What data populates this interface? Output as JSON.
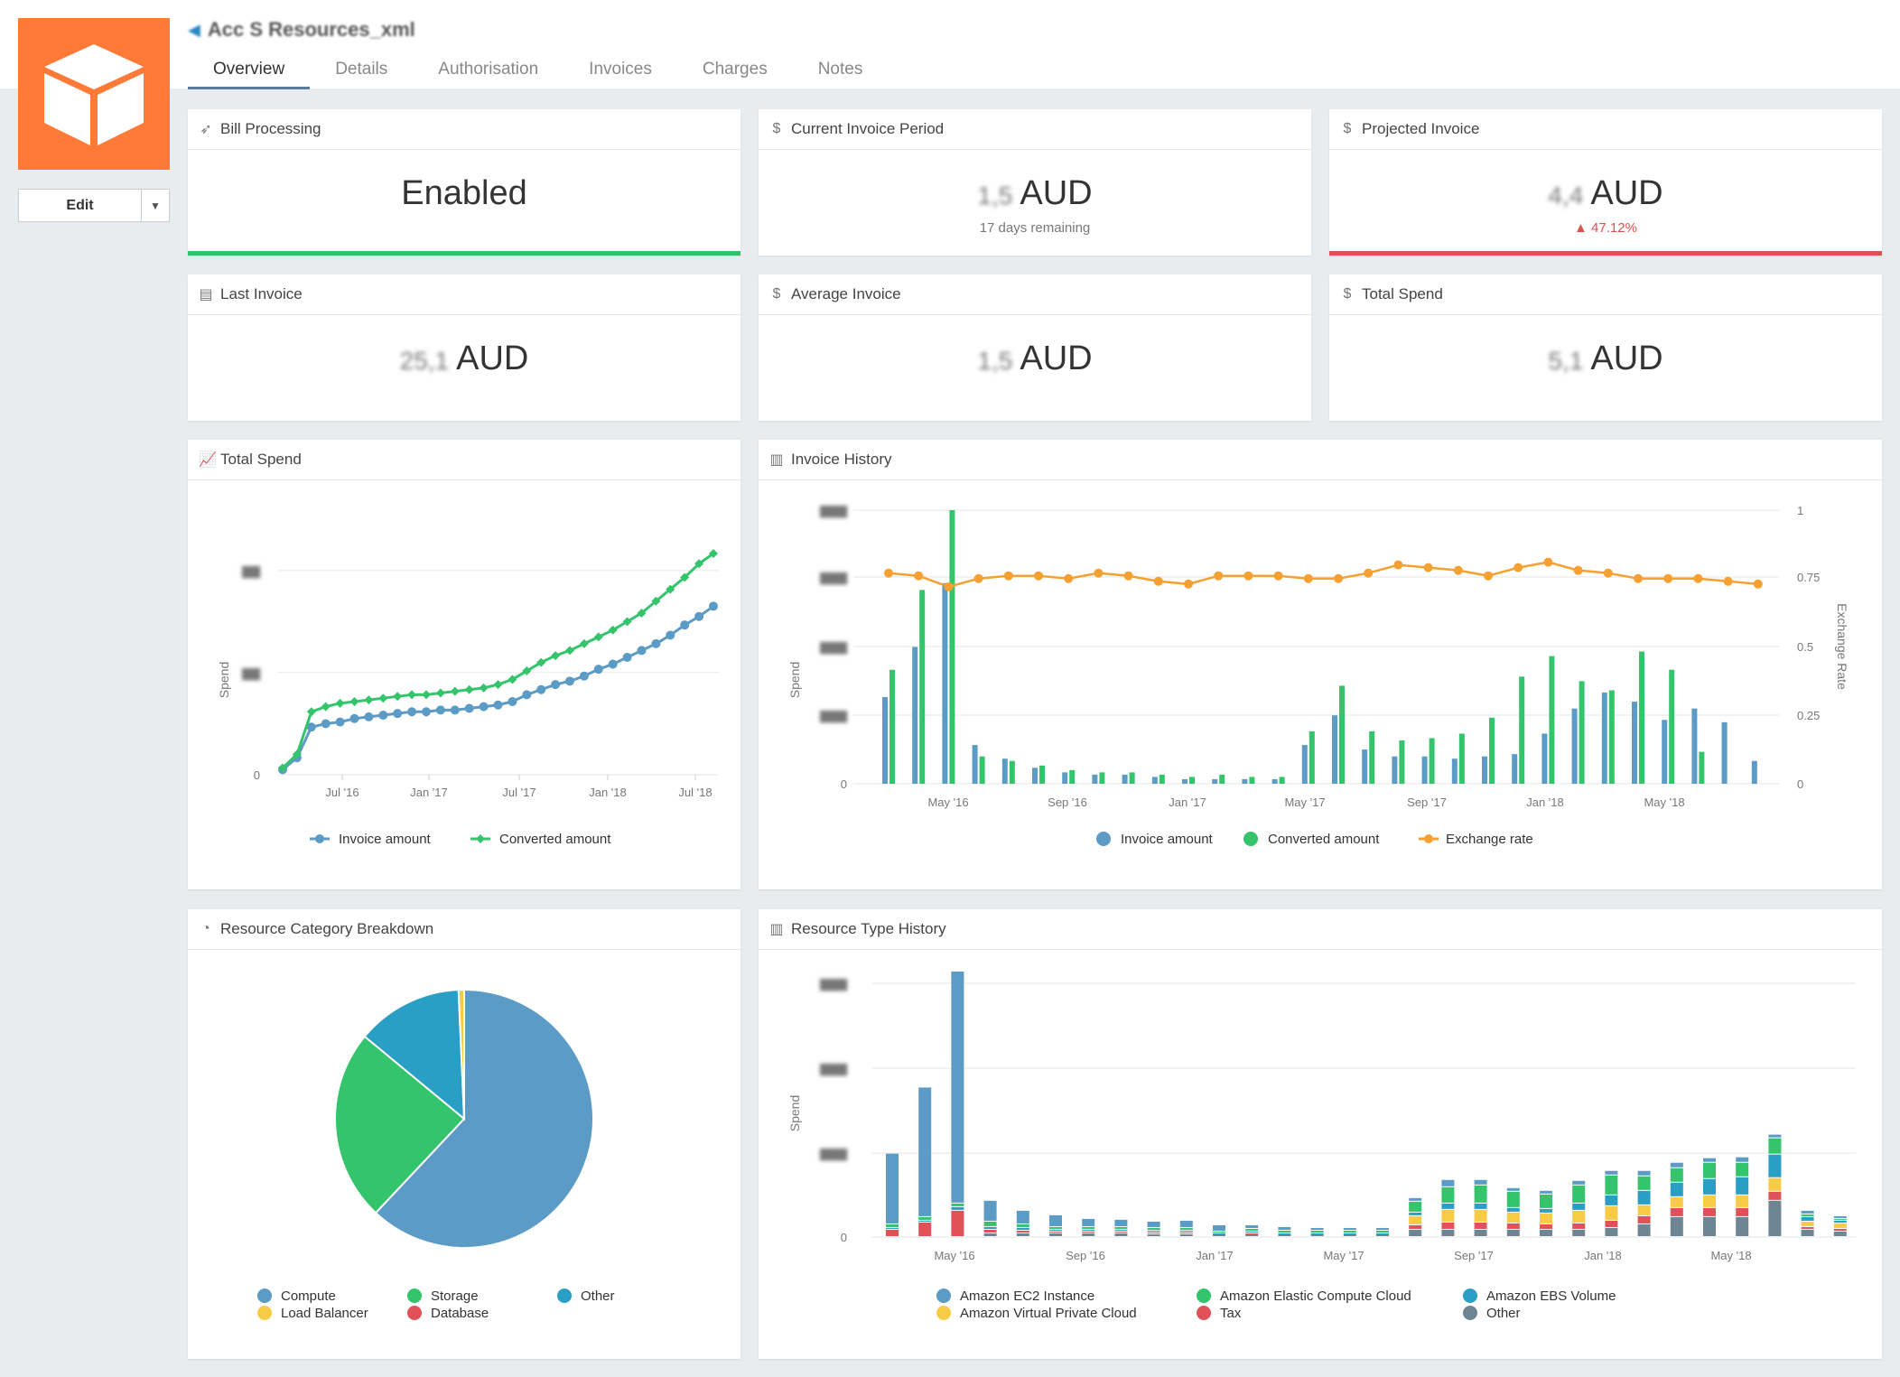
{
  "account": {
    "name": "Acc S Resources_xml"
  },
  "tabs": [
    "Overview",
    "Details",
    "Authorisation",
    "Invoices",
    "Charges",
    "Notes"
  ],
  "active_tab": "Overview",
  "edit": {
    "label": "Edit"
  },
  "stats": {
    "bill_processing": {
      "title": "Bill Processing",
      "value": "Enabled"
    },
    "current_invoice": {
      "title": "Current Invoice Period",
      "blurred": "1,5",
      "currency": "AUD",
      "sub": "17 days remaining"
    },
    "projected_invoice": {
      "title": "Projected Invoice",
      "blurred": "4,4",
      "currency": "AUD",
      "sub": "▲ 47.12%"
    },
    "last_invoice": {
      "title": "Last Invoice",
      "blurred": "25,1",
      "currency": "AUD"
    },
    "average_invoice": {
      "title": "Average Invoice",
      "blurred": "1,5",
      "currency": "AUD"
    },
    "total_spend": {
      "title": "Total Spend",
      "blurred": "5,1",
      "currency": "AUD"
    }
  },
  "colors": {
    "blue": "#5b9bc5",
    "green": "#34c56c",
    "orange": "#f5a030",
    "teal": "#2a9fc6",
    "yellow": "#f7cb45",
    "red": "#e05258",
    "gray": "#6e8593",
    "logo": "#ff7a36"
  },
  "panels": {
    "total_spend": "Total Spend",
    "invoice_history": "Invoice History",
    "resource_breakdown": "Resource Category Breakdown",
    "resource_history": "Resource Type History"
  },
  "chart_data": [
    {
      "id": "total_spend",
      "type": "line",
      "ylabel": "Spend",
      "y_ticks": [
        "0",
        "",
        ""
      ],
      "x_ticks": [
        "Jul '16",
        "Jan '17",
        "Jul '17",
        "Jan '18",
        "Jul '18"
      ],
      "series": [
        {
          "name": "Invoice amount",
          "values": [
            3,
            10,
            28,
            30,
            31,
            33,
            34,
            35,
            36,
            37,
            37,
            38,
            38,
            39,
            40,
            41,
            43,
            47,
            50,
            53,
            55,
            58,
            62,
            65,
            69,
            73,
            77,
            82,
            88,
            93,
            99
          ]
        },
        {
          "name": "Converted amount",
          "values": [
            4,
            12,
            37,
            40,
            42,
            43,
            44,
            45,
            46,
            47,
            47,
            48,
            49,
            50,
            51,
            53,
            56,
            61,
            66,
            70,
            73,
            77,
            81,
            85,
            90,
            95,
            102,
            109,
            116,
            124,
            130
          ]
        }
      ],
      "ylim": [
        0,
        130
      ]
    },
    {
      "id": "invoice_history",
      "type": "bar",
      "ylabel": "Spend",
      "y2label": "Exchange Rate",
      "y_ticks": [
        "0",
        "",
        "",
        "",
        ""
      ],
      "y2_ticks": [
        "0",
        "0.25",
        "0.5",
        "0.75",
        "1"
      ],
      "x_ticks": [
        "May '16",
        "Sep '16",
        "Jan '17",
        "May '17",
        "Sep '17",
        "Jan '18",
        "May '18"
      ],
      "series": [
        {
          "name": "Invoice amount",
          "values": [
            38,
            60,
            88,
            17,
            11,
            7,
            5,
            4,
            4,
            3,
            2,
            2,
            2,
            2,
            17,
            30,
            15,
            12,
            12,
            11,
            12,
            13,
            22,
            33,
            40,
            36,
            28,
            33,
            27,
            10
          ]
        },
        {
          "name": "Converted amount",
          "values": [
            50,
            85,
            120,
            12,
            10,
            8,
            6,
            5,
            5,
            4,
            3,
            4,
            3,
            3,
            23,
            43,
            23,
            19,
            20,
            22,
            29,
            47,
            56,
            45,
            41,
            58,
            50,
            14,
            0,
            0
          ]
        },
        {
          "name": "Exchange rate",
          "values": [
            0.77,
            0.76,
            0.72,
            0.75,
            0.76,
            0.76,
            0.75,
            0.77,
            0.76,
            0.74,
            0.73,
            0.76,
            0.76,
            0.76,
            0.75,
            0.75,
            0.77,
            0.8,
            0.79,
            0.78,
            0.76,
            0.79,
            0.81,
            0.78,
            0.77,
            0.75,
            0.75,
            0.75,
            0.74,
            0.73
          ]
        }
      ],
      "ylim": [
        0,
        120
      ],
      "y2lim": [
        0,
        1
      ]
    },
    {
      "id": "resource_breakdown",
      "type": "pie",
      "slices": [
        {
          "name": "Compute",
          "value": 62
        },
        {
          "name": "Storage",
          "value": 24
        },
        {
          "name": "Other",
          "value": 13.3
        },
        {
          "name": "Load Balancer",
          "value": 0.7
        },
        {
          "name": "Database",
          "value": 0
        }
      ]
    },
    {
      "id": "resource_history",
      "type": "bar",
      "stacked": true,
      "ylabel": "Spend",
      "y_ticks": [
        "0",
        "",
        "",
        ""
      ],
      "x_ticks": [
        "May '16",
        "Sep '16",
        "Jan '17",
        "May '17",
        "Sep '17",
        "Jan '18",
        "May '18"
      ],
      "series": [
        {
          "name": "Amazon EC2 Instance",
          "values": [
            78,
            143,
            256,
            23,
            15,
            13,
            9,
            8,
            7,
            8,
            7,
            4,
            4,
            3,
            3,
            3,
            4,
            8,
            6,
            4,
            4,
            5,
            5,
            6,
            6,
            5,
            6,
            4,
            4,
            3
          ]
        },
        {
          "name": "Amazon Elastic Compute Cloud",
          "values": [
            4,
            4,
            4,
            6,
            4,
            3,
            3,
            3,
            3,
            3,
            2,
            3,
            3,
            3,
            3,
            3,
            12,
            18,
            20,
            18,
            16,
            20,
            22,
            16,
            16,
            18,
            16,
            18,
            3,
            2
          ]
        },
        {
          "name": "Amazon EBS Volume",
          "values": [
            2,
            2,
            4,
            3,
            3,
            2,
            2,
            2,
            2,
            2,
            1,
            2,
            1,
            1,
            1,
            1,
            4,
            7,
            7,
            5,
            5,
            8,
            12,
            16,
            16,
            18,
            20,
            26,
            5,
            3
          ]
        },
        {
          "name": "Amazon Virtual Private Cloud",
          "values": [
            0,
            0,
            0,
            0,
            0,
            0,
            0,
            0,
            0,
            0,
            0,
            0,
            0,
            0,
            0,
            0,
            10,
            14,
            14,
            12,
            12,
            14,
            16,
            12,
            12,
            14,
            14,
            15,
            6,
            6
          ]
        },
        {
          "name": "Tax",
          "values": [
            8,
            16,
            29,
            4,
            3,
            2,
            2,
            2,
            2,
            2,
            1,
            1,
            1,
            1,
            1,
            1,
            5,
            8,
            8,
            7,
            6,
            7,
            8,
            9,
            10,
            10,
            10,
            10,
            3,
            3
          ]
        },
        {
          "name": "Other",
          "values": [
            0,
            0,
            0,
            4,
            4,
            4,
            4,
            4,
            3,
            3,
            2,
            3,
            2,
            2,
            2,
            2,
            8,
            8,
            8,
            8,
            8,
            8,
            10,
            14,
            22,
            22,
            22,
            40,
            8,
            6
          ]
        }
      ],
      "ylim": [
        0,
        280
      ]
    }
  ]
}
